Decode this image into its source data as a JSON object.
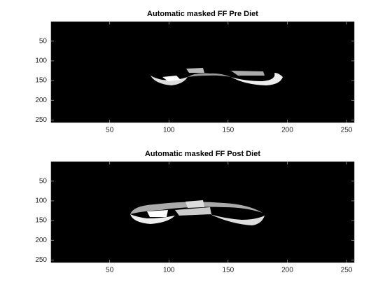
{
  "chart_data": [
    {
      "type": "image",
      "title": "Automatic masked FF Pre Diet",
      "xlim": [
        0.5,
        256.5
      ],
      "ylim": [
        0.5,
        256.5
      ],
      "ydir": "reverse",
      "xticks": [
        50,
        100,
        150,
        200,
        250
      ],
      "yticks": [
        50,
        100,
        150,
        200,
        250
      ],
      "colormap": "gray"
    },
    {
      "type": "image",
      "title": "Automatic masked FF Post Diet",
      "xlim": [
        0.5,
        256.5
      ],
      "ylim": [
        0.5,
        256.5
      ],
      "ydir": "reverse",
      "xticks": [
        50,
        100,
        150,
        200,
        250
      ],
      "yticks": [
        50,
        100,
        150,
        200,
        250
      ],
      "colormap": "gray"
    }
  ]
}
